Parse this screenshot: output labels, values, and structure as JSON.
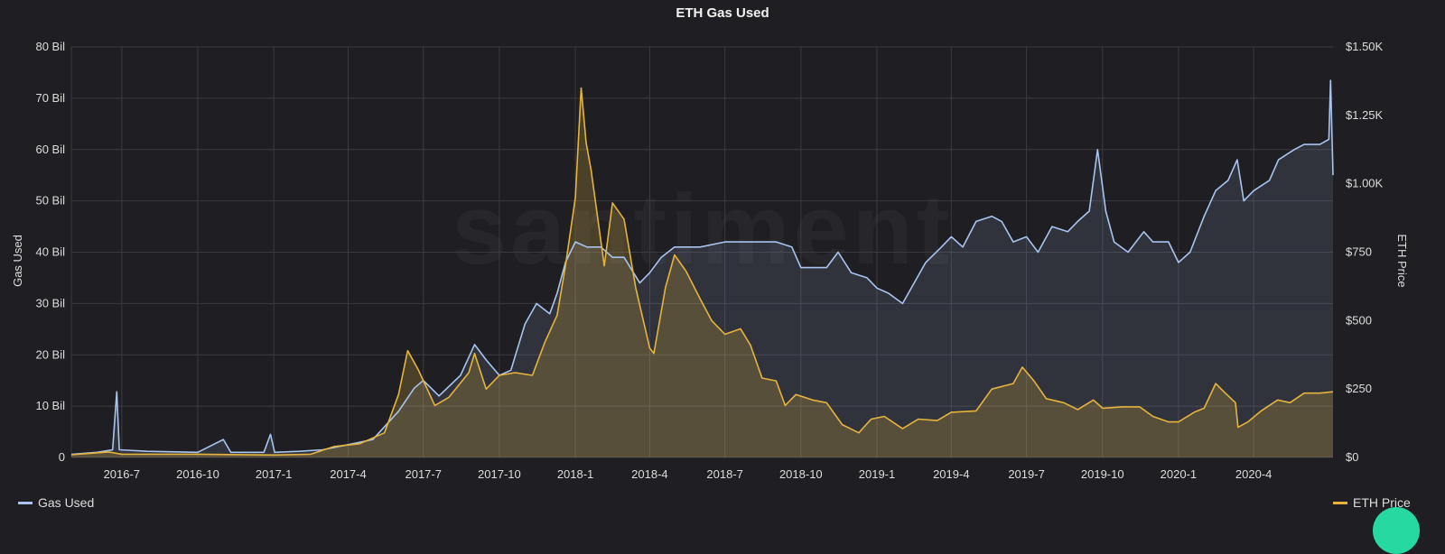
{
  "chart_data": {
    "type": "line",
    "title": "ETH Gas Used",
    "watermark": "santiment",
    "ylabel_left": "Gas Used",
    "ylabel_right": "ETH Price",
    "y_left_ticks": [
      "0",
      "10 Bil",
      "20 Bil",
      "30 Bil",
      "40 Bil",
      "50 Bil",
      "60 Bil",
      "70 Bil",
      "80 Bil"
    ],
    "y_right_ticks": [
      "$0",
      "$250",
      "$500",
      "$750",
      "$1.00K",
      "$1.25K",
      "$1.50K"
    ],
    "x_ticks": [
      "2016-7",
      "2016-10",
      "2017-1",
      "2017-4",
      "2017-7",
      "2017-10",
      "2018-1",
      "2018-4",
      "2018-7",
      "2018-10",
      "2019-1",
      "2019-4",
      "2019-7",
      "2019-10",
      "2020-1",
      "2020-4"
    ],
    "y_left_range": [
      0,
      80000000000
    ],
    "y_right_range": [
      0,
      1500
    ],
    "x_range": [
      "2016-05-01",
      "2020-07-06"
    ],
    "grid": true,
    "legend_position": "bottom",
    "series": [
      {
        "name": "Gas Used",
        "axis": "left",
        "color": "#a9c4ef",
        "fill": "rgba(169,196,239,0.12)",
        "points": [
          [
            "2016-05-01",
            600000000.0
          ],
          [
            "2016-06-01",
            1000000000.0
          ],
          [
            "2016-06-20",
            1500000000.0
          ],
          [
            "2016-06-25",
            12800000000.0
          ],
          [
            "2016-06-28",
            1500000000.0
          ],
          [
            "2016-08-01",
            1200000000.0
          ],
          [
            "2016-10-01",
            1000000000.0
          ],
          [
            "2016-11-01",
            3500000000.0
          ],
          [
            "2016-11-10",
            1000000000.0
          ],
          [
            "2016-12-20",
            1000000000.0
          ],
          [
            "2016-12-28",
            4500000000.0
          ],
          [
            "2017-01-02",
            1000000000.0
          ],
          [
            "2017-02-01",
            1200000000.0
          ],
          [
            "2017-03-01",
            1500000000.0
          ],
          [
            "2017-04-01",
            2500000000.0
          ],
          [
            "2017-05-01",
            3500000000.0
          ],
          [
            "2017-06-01",
            9000000000.0
          ],
          [
            "2017-06-20",
            13500000000.0
          ],
          [
            "2017-07-01",
            15000000000.0
          ],
          [
            "2017-07-20",
            12000000000.0
          ],
          [
            "2017-08-15",
            16000000000.0
          ],
          [
            "2017-09-01",
            22000000000.0
          ],
          [
            "2017-09-15",
            19000000000.0
          ],
          [
            "2017-10-01",
            16000000000.0
          ],
          [
            "2017-10-15",
            17000000000.0
          ],
          [
            "2017-11-01",
            26000000000.0
          ],
          [
            "2017-11-15",
            30000000000.0
          ],
          [
            "2017-12-01",
            28000000000.0
          ],
          [
            "2017-12-10",
            32000000000.0
          ],
          [
            "2017-12-20",
            38000000000.0
          ],
          [
            "2018-01-01",
            42000000000.0
          ],
          [
            "2018-01-15",
            41000000000.0
          ],
          [
            "2018-02-01",
            41000000000.0
          ],
          [
            "2018-02-15",
            39000000000.0
          ],
          [
            "2018-03-01",
            39000000000.0
          ],
          [
            "2018-03-20",
            34000000000.0
          ],
          [
            "2018-04-01",
            36000000000.0
          ],
          [
            "2018-04-15",
            39000000000.0
          ],
          [
            "2018-05-01",
            41000000000.0
          ],
          [
            "2018-06-01",
            41000000000.0
          ],
          [
            "2018-07-01",
            42000000000.0
          ],
          [
            "2018-08-01",
            42000000000.0
          ],
          [
            "2018-09-01",
            42000000000.0
          ],
          [
            "2018-09-20",
            41000000000.0
          ],
          [
            "2018-10-01",
            37000000000.0
          ],
          [
            "2018-11-01",
            37000000000.0
          ],
          [
            "2018-11-15",
            40000000000.0
          ],
          [
            "2018-12-01",
            36000000000.0
          ],
          [
            "2018-12-20",
            35000000000.0
          ],
          [
            "2019-01-01",
            33000000000.0
          ],
          [
            "2019-01-15",
            32000000000.0
          ],
          [
            "2019-02-01",
            30000000000.0
          ],
          [
            "2019-02-15",
            34000000000.0
          ],
          [
            "2019-03-01",
            38000000000.0
          ],
          [
            "2019-03-20",
            41000000000.0
          ],
          [
            "2019-04-01",
            43000000000.0
          ],
          [
            "2019-04-15",
            41000000000.0
          ],
          [
            "2019-05-01",
            46000000000.0
          ],
          [
            "2019-05-20",
            47000000000.0
          ],
          [
            "2019-06-01",
            46000000000.0
          ],
          [
            "2019-06-15",
            42000000000.0
          ],
          [
            "2019-07-01",
            43000000000.0
          ],
          [
            "2019-07-15",
            40000000000.0
          ],
          [
            "2019-08-01",
            45000000000.0
          ],
          [
            "2019-08-20",
            44000000000.0
          ],
          [
            "2019-09-01",
            46000000000.0
          ],
          [
            "2019-09-15",
            48000000000.0
          ],
          [
            "2019-09-25",
            60000000000.0
          ],
          [
            "2019-10-05",
            48000000000.0
          ],
          [
            "2019-10-15",
            42000000000.0
          ],
          [
            "2019-11-01",
            40000000000.0
          ],
          [
            "2019-11-20",
            44000000000.0
          ],
          [
            "2019-12-01",
            42000000000.0
          ],
          [
            "2019-12-20",
            42000000000.0
          ],
          [
            "2020-01-01",
            38000000000.0
          ],
          [
            "2020-01-15",
            40000000000.0
          ],
          [
            "2020-02-01",
            47000000000.0
          ],
          [
            "2020-02-15",
            52000000000.0
          ],
          [
            "2020-03-01",
            54000000000.0
          ],
          [
            "2020-03-12",
            58000000000.0
          ],
          [
            "2020-03-20",
            50000000000.0
          ],
          [
            "2020-04-01",
            52000000000.0
          ],
          [
            "2020-04-20",
            54000000000.0
          ],
          [
            "2020-05-01",
            58000000000.0
          ],
          [
            "2020-05-20",
            60000000000.0
          ],
          [
            "2020-06-01",
            61000000000.0
          ],
          [
            "2020-06-20",
            61000000000.0
          ],
          [
            "2020-07-01",
            62000000000.0
          ],
          [
            "2020-07-03",
            73500000000.0
          ],
          [
            "2020-07-06",
            55000000000.0
          ]
        ]
      },
      {
        "name": "ETH Price",
        "axis": "right",
        "color": "#e6b43c",
        "fill": "rgba(230,180,60,0.22)",
        "points": [
          [
            "2016-05-01",
            10
          ],
          [
            "2016-06-15",
            20
          ],
          [
            "2016-07-01",
            12
          ],
          [
            "2016-10-01",
            12
          ],
          [
            "2017-01-01",
            9
          ],
          [
            "2017-02-15",
            12
          ],
          [
            "2017-03-15",
            40
          ],
          [
            "2017-04-15",
            50
          ],
          [
            "2017-05-15",
            90
          ],
          [
            "2017-06-01",
            230
          ],
          [
            "2017-06-12",
            390
          ],
          [
            "2017-06-25",
            320
          ],
          [
            "2017-07-15",
            190
          ],
          [
            "2017-08-01",
            220
          ],
          [
            "2017-08-25",
            310
          ],
          [
            "2017-09-01",
            380
          ],
          [
            "2017-09-15",
            250
          ],
          [
            "2017-10-01",
            300
          ],
          [
            "2017-10-20",
            310
          ],
          [
            "2017-11-10",
            300
          ],
          [
            "2017-11-25",
            420
          ],
          [
            "2017-12-10",
            520
          ],
          [
            "2017-12-20",
            700
          ],
          [
            "2018-01-01",
            950
          ],
          [
            "2018-01-08",
            1350
          ],
          [
            "2018-01-14",
            1150
          ],
          [
            "2018-01-20",
            1050
          ],
          [
            "2018-02-05",
            700
          ],
          [
            "2018-02-15",
            930
          ],
          [
            "2018-03-01",
            870
          ],
          [
            "2018-03-15",
            620
          ],
          [
            "2018-04-01",
            400
          ],
          [
            "2018-04-06",
            380
          ],
          [
            "2018-04-20",
            620
          ],
          [
            "2018-05-01",
            740
          ],
          [
            "2018-05-15",
            680
          ],
          [
            "2018-06-01",
            580
          ],
          [
            "2018-06-15",
            500
          ],
          [
            "2018-07-01",
            450
          ],
          [
            "2018-07-20",
            470
          ],
          [
            "2018-08-01",
            410
          ],
          [
            "2018-08-15",
            290
          ],
          [
            "2018-09-01",
            280
          ],
          [
            "2018-09-12",
            190
          ],
          [
            "2018-09-25",
            230
          ],
          [
            "2018-10-15",
            210
          ],
          [
            "2018-11-01",
            200
          ],
          [
            "2018-11-20",
            120
          ],
          [
            "2018-12-10",
            90
          ],
          [
            "2018-12-25",
            140
          ],
          [
            "2019-01-10",
            150
          ],
          [
            "2019-02-01",
            105
          ],
          [
            "2019-02-20",
            140
          ],
          [
            "2019-03-15",
            135
          ],
          [
            "2019-04-01",
            165
          ],
          [
            "2019-05-01",
            170
          ],
          [
            "2019-05-20",
            250
          ],
          [
            "2019-06-15",
            270
          ],
          [
            "2019-06-26",
            330
          ],
          [
            "2019-07-10",
            280
          ],
          [
            "2019-07-25",
            215
          ],
          [
            "2019-08-15",
            200
          ],
          [
            "2019-09-01",
            175
          ],
          [
            "2019-09-20",
            210
          ],
          [
            "2019-10-01",
            180
          ],
          [
            "2019-10-25",
            185
          ],
          [
            "2019-11-15",
            185
          ],
          [
            "2019-12-01",
            150
          ],
          [
            "2019-12-20",
            130
          ],
          [
            "2020-01-01",
            130
          ],
          [
            "2020-01-20",
            165
          ],
          [
            "2020-02-01",
            180
          ],
          [
            "2020-02-15",
            270
          ],
          [
            "2020-02-25",
            240
          ],
          [
            "2020-03-10",
            200
          ],
          [
            "2020-03-13",
            110
          ],
          [
            "2020-03-25",
            130
          ],
          [
            "2020-04-10",
            170
          ],
          [
            "2020-04-30",
            210
          ],
          [
            "2020-05-15",
            200
          ],
          [
            "2020-06-01",
            235
          ],
          [
            "2020-06-20",
            235
          ],
          [
            "2020-07-06",
            240
          ]
        ]
      }
    ]
  },
  "legend": {
    "gas_label": "Gas Used",
    "price_label": "ETH Price"
  },
  "colors": {
    "background": "#1f1f23",
    "grid": "#3a3a40",
    "fab": "#26d9a0"
  }
}
